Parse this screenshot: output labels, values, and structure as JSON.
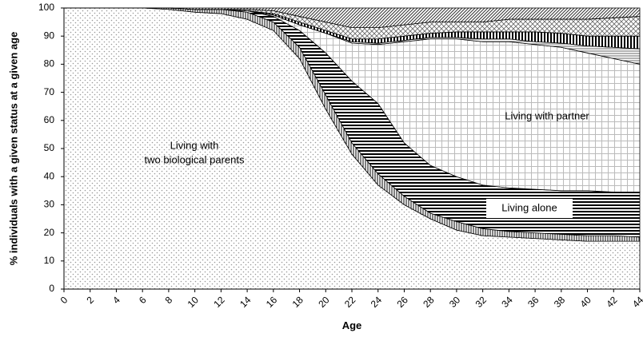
{
  "chart_data": {
    "type": "stacked-area",
    "x_label": "Age",
    "y_label": "% individuals with a given status at a given age",
    "x": [
      0,
      2,
      4,
      6,
      8,
      10,
      12,
      14,
      16,
      18,
      20,
      22,
      24,
      26,
      28,
      30,
      32,
      34,
      36,
      38,
      40,
      42,
      44
    ],
    "xlim": [
      0,
      44
    ],
    "xticks": [
      0,
      2,
      4,
      6,
      8,
      10,
      12,
      14,
      16,
      18,
      20,
      22,
      24,
      26,
      28,
      30,
      32,
      34,
      36,
      38,
      40,
      42,
      44
    ],
    "ylim": [
      0,
      100
    ],
    "yticks": [
      0,
      10,
      20,
      30,
      40,
      50,
      60,
      70,
      80,
      90,
      100
    ],
    "series": [
      {
        "pattern": "dots",
        "values": [
          100,
          100,
          100,
          100,
          99.5,
          98.5,
          98,
          96,
          92,
          82,
          64,
          48,
          37,
          30,
          25,
          21,
          19,
          18.5,
          18,
          17.5,
          17,
          17,
          17
        ]
      },
      {
        "pattern": "vfine",
        "values": [
          0,
          0,
          0,
          0,
          0.5,
          1,
          1.5,
          2.5,
          3,
          4,
          5,
          4,
          4,
          3,
          2,
          3,
          2.5,
          2,
          2,
          2,
          2,
          2,
          1.5
        ]
      },
      {
        "pattern": "hbold",
        "values": [
          0,
          0,
          0,
          0,
          0,
          0,
          0,
          0.5,
          2,
          6,
          15,
          22,
          25,
          19,
          17,
          16,
          15.5,
          15.5,
          15.5,
          15.5,
          16,
          15.5,
          16
        ]
      },
      {
        "pattern": "grid",
        "values": [
          0,
          0,
          0,
          0,
          0,
          0,
          0,
          0,
          0.5,
          2,
          7,
          13.5,
          21,
          36,
          45,
          49,
          51,
          52,
          51.5,
          51,
          49,
          47.5,
          45.5
        ]
      },
      {
        "pattern": "hthin",
        "values": [
          0,
          0,
          0,
          0,
          0,
          0,
          0,
          0,
          0,
          0,
          0,
          0.5,
          0.5,
          0.5,
          0.5,
          0.5,
          1,
          1,
          1,
          1.5,
          2.5,
          4,
          5.5
        ]
      },
      {
        "pattern": "vbold",
        "values": [
          0,
          0,
          0,
          0,
          0,
          0,
          0,
          0,
          0.5,
          1,
          1,
          1,
          1.5,
          1.5,
          1.5,
          2,
          2.5,
          2.5,
          3.5,
          3.5,
          3.5,
          4,
          4.5
        ]
      },
      {
        "pattern": "cross",
        "values": [
          0,
          0,
          0,
          0,
          0,
          0,
          0,
          0.5,
          1,
          2,
          3,
          4,
          4,
          4,
          4,
          3.5,
          3.5,
          4.5,
          4.5,
          5,
          6,
          6.5,
          7
        ]
      },
      {
        "pattern": "diag",
        "values": [
          0,
          0,
          0,
          0,
          0,
          0.5,
          0.5,
          0.5,
          1,
          3,
          5,
          7,
          7,
          6,
          5,
          5,
          5,
          4,
          4,
          4,
          4,
          3.5,
          3
        ]
      }
    ],
    "annotations": [
      "Living with",
      "two biological parents",
      "Living with partner",
      "Living alone"
    ]
  }
}
